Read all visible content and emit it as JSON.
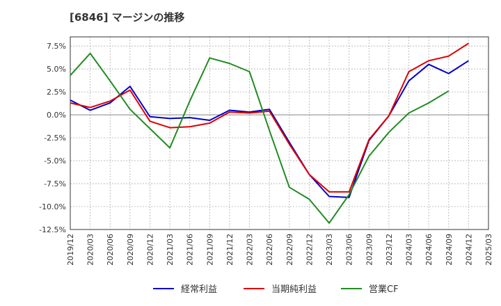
{
  "chart_data": {
    "type": "line",
    "title": "[6846]  マージンの推移",
    "xlabel": "",
    "ylabel": "",
    "ylim": [
      -12.5,
      8.5
    ],
    "yticks": [
      7.5,
      5.0,
      2.5,
      0.0,
      -2.5,
      -5.0,
      -7.5,
      -10.0,
      -12.5
    ],
    "ytick_labels": [
      "7.5%",
      "5.0%",
      "2.5%",
      "0.0%",
      "-2.5%",
      "-5.0%",
      "-7.5%",
      "-10.0%",
      "-12.5%"
    ],
    "categories": [
      "2019/12",
      "2020/03",
      "2020/06",
      "2020/09",
      "2020/12",
      "2021/03",
      "2021/06",
      "2021/09",
      "2021/12",
      "2022/03",
      "2022/06",
      "2022/09",
      "2022/12",
      "2023/03",
      "2023/06",
      "2023/09",
      "2023/12",
      "2024/03",
      "2024/06",
      "2024/09",
      "2024/12",
      "2025/03"
    ],
    "grid": true,
    "legend_position": "bottom",
    "series": [
      {
        "name": "経常利益",
        "color": "#0000cc",
        "values": [
          1.6,
          0.5,
          1.3,
          3.1,
          -0.2,
          -0.4,
          -0.3,
          -0.6,
          0.5,
          0.3,
          0.6,
          -3.0,
          -6.5,
          -8.9,
          -9.0,
          -2.8,
          -0.1,
          3.7,
          5.5,
          4.5,
          5.9,
          null
        ]
      },
      {
        "name": "当期純利益",
        "color": "#dd0000",
        "values": [
          1.3,
          0.8,
          1.5,
          2.7,
          -0.7,
          -1.4,
          -1.3,
          -0.9,
          0.3,
          0.2,
          0.4,
          -3.2,
          -6.5,
          -8.4,
          -8.4,
          -2.7,
          -0.1,
          4.7,
          5.9,
          6.4,
          7.8,
          null
        ]
      },
      {
        "name": "営業CF",
        "color": "#228b22",
        "values": [
          4.3,
          6.7,
          3.7,
          0.6,
          -1.5,
          -3.6,
          1.5,
          6.2,
          5.6,
          4.7,
          -1.7,
          -7.9,
          -9.2,
          -11.8,
          -8.7,
          -4.5,
          -1.9,
          0.2,
          1.3,
          2.6,
          null,
          null
        ]
      }
    ]
  }
}
